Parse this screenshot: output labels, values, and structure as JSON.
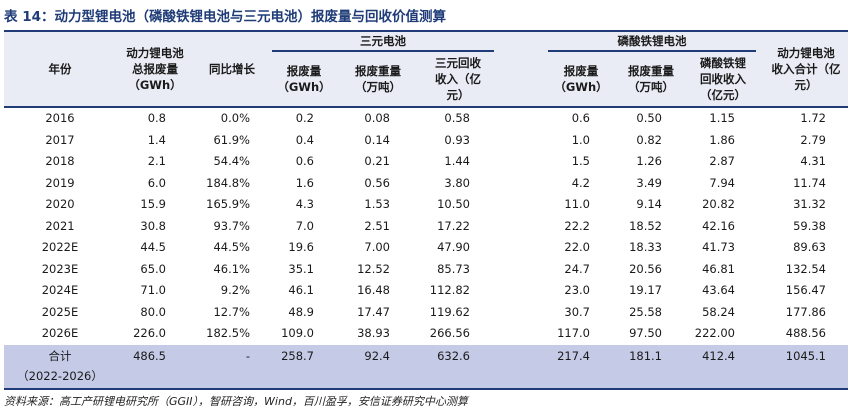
{
  "title": "表 14：动力型锂电池（磷酸铁锂电池与三元电池）报废量与回收价值测算",
  "groups": {
    "ternary": "三元电池",
    "lfp": "磷酸铁锂电池"
  },
  "headers": {
    "year": "年份",
    "total_scrap": [
      "动力锂电池",
      "总报废量",
      "（GWh）"
    ],
    "yoy": "同比增长",
    "t_scrap": [
      "报废量",
      "（GWh）"
    ],
    "t_weight": [
      "报废重量",
      "（万吨）"
    ],
    "t_revenue": [
      "三元回收",
      "收入（亿",
      "元）"
    ],
    "l_scrap": [
      "报废量",
      "（GWh）"
    ],
    "l_weight": [
      "报废重量",
      "（万吨）"
    ],
    "l_revenue": [
      "磷酸铁锂",
      "回收收入",
      "（亿元）"
    ],
    "sum_revenue": [
      "动力锂电池",
      "收入合计（亿",
      "元）"
    ]
  },
  "rows": [
    [
      "2016",
      "0.8",
      "0.0%",
      "0.2",
      "0.08",
      "0.58",
      "0.6",
      "0.50",
      "1.15",
      "1.72"
    ],
    [
      "2017",
      "1.4",
      "61.9%",
      "0.4",
      "0.14",
      "0.93",
      "1.0",
      "0.82",
      "1.86",
      "2.79"
    ],
    [
      "2018",
      "2.1",
      "54.4%",
      "0.6",
      "0.21",
      "1.44",
      "1.5",
      "1.26",
      "2.87",
      "4.31"
    ],
    [
      "2019",
      "6.0",
      "184.8%",
      "1.6",
      "0.56",
      "3.80",
      "4.2",
      "3.49",
      "7.94",
      "11.74"
    ],
    [
      "2020",
      "15.9",
      "165.9%",
      "4.3",
      "1.53",
      "10.50",
      "11.0",
      "9.14",
      "20.82",
      "31.32"
    ],
    [
      "2021",
      "30.8",
      "93.7%",
      "7.0",
      "2.51",
      "17.22",
      "22.2",
      "18.52",
      "42.16",
      "59.38"
    ],
    [
      "2022E",
      "44.5",
      "44.5%",
      "19.6",
      "7.00",
      "47.90",
      "22.0",
      "18.33",
      "41.73",
      "89.63"
    ],
    [
      "2023E",
      "65.0",
      "46.1%",
      "35.1",
      "12.52",
      "85.73",
      "24.7",
      "20.56",
      "46.81",
      "132.54"
    ],
    [
      "2024E",
      "71.0",
      "9.2%",
      "46.1",
      "16.48",
      "112.82",
      "23.0",
      "19.17",
      "43.64",
      "156.47"
    ],
    [
      "2025E",
      "80.0",
      "12.7%",
      "48.9",
      "17.47",
      "119.62",
      "30.7",
      "25.58",
      "58.24",
      "177.86"
    ],
    [
      "2026E",
      "226.0",
      "182.5%",
      "109.0",
      "38.93",
      "266.56",
      "117.0",
      "97.50",
      "222.00",
      "488.56"
    ]
  ],
  "total": {
    "label": "合计",
    "period": "（2022-2026）",
    "values": [
      "486.5",
      "-",
      "258.7",
      "92.4",
      "632.6",
      "217.4",
      "181.1",
      "412.4",
      "1045.1"
    ]
  },
  "source": "资料来源：高工产研锂电研究所（GGII），智研咨询，Wind，百川盈孚，安信证券研究中心测算"
}
